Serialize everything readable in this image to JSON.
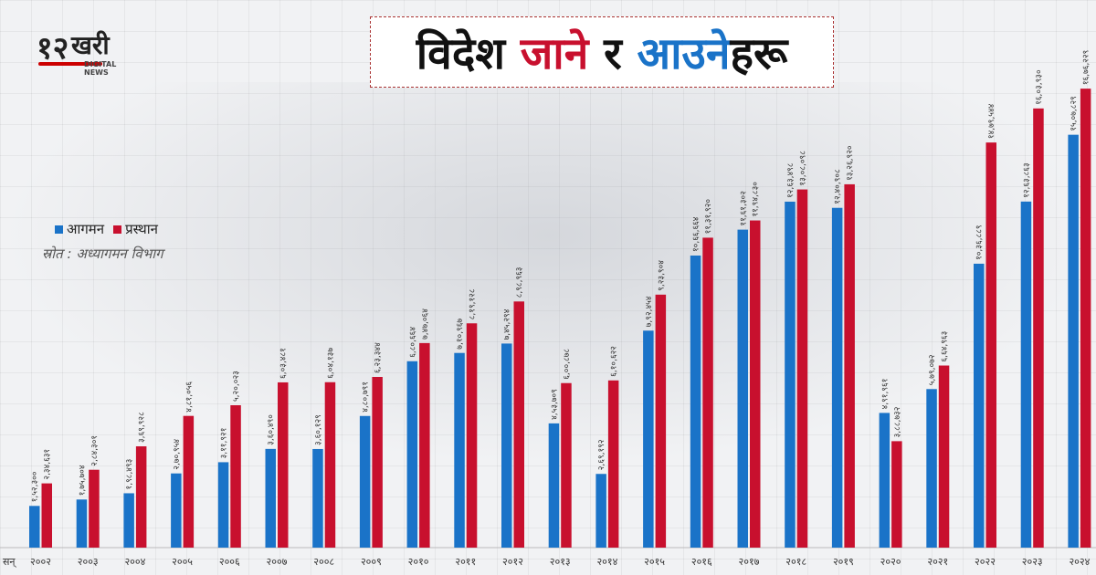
{
  "logo": {
    "number": "१२",
    "word": "खरी",
    "subtitle": "DIGITAL NEWS"
  },
  "title": {
    "part1": "विदेश",
    "part2": "जाने",
    "part3": "र",
    "part4": "आउने",
    "part5": "हरू"
  },
  "colors": {
    "arrival": "#1a73c8",
    "departure": "#c8102e"
  },
  "legend": {
    "arrival": "आगमन",
    "departure": "प्रस्थान"
  },
  "source": "स्रोत : अध्यागमन विभाग",
  "chart_data": {
    "type": "bar",
    "x_prefix": "सन्",
    "categories": [
      "२००२",
      "२००३",
      "२००४",
      "२००५",
      "२००६",
      "२००७",
      "२००८",
      "२००९",
      "२०१०",
      "२०११",
      "२०१२",
      "२०१३",
      "२०१४",
      "२०१५",
      "२०१६",
      "२०१७",
      "२०१८",
      "२०१९",
      "२०२०",
      "२०२१",
      "२०२२",
      "२०२३",
      "२०२४"
    ],
    "series": [
      {
        "name": "आगमन",
        "values": [
          152300,
          175704,
          198493,
          270954,
          311921,
          360490,
          360129,
          480791,
          680664,
          710967,
          745294,
          453709,
          269192,
          792454,
          1066664,
          1161302,
          1263498,
          1240908,
          491961,
          579072,
          1036889,
          1263863,
          1507829
        ],
        "labels": [
          "१,५२,३००",
          "१,७५,७०४",
          "१,९८,४९३",
          "२,७०,९५४",
          "३,११,९२१",
          "३,६०,४९०",
          "३,६०,१२९",
          "४,८०,७९१",
          "६,८०,६६४",
          "७,१०,९६७",
          "७,४५,२९४",
          "४,५३,७०९",
          "२,६९,१९२",
          "७,९२,४५४",
          "१०,६६,६६४",
          "११,६१,३०२",
          "१२,६३,४९८",
          "१२,४०,९०८",
          "४,९१,९६१",
          "५,७९,०७२",
          "१०,३६,८८९",
          "१२,६३,८६३",
          "१५,०७,८२९"
        ]
      },
      {
        "name": "प्रस्थान",
        "values": [
          234631,
          284301,
          369928,
          481056,
          520023,
          603481,
          604137,
          623344,
          747064,
          819128,
          898963,
          600878,
          610622,
          923904,
          1131920,
          1194830,
          1308098,
          1326920,
          388732,
          664963,
          1479544,
          1603930,
          1676229
        ],
        "labels": [
          "२,३४,६३१",
          "२,८४,३०१",
          "३,६९,९२८",
          "४,८१,०५६",
          "५,२०,०२३",
          "६,०३,४८१",
          "६,०४,१३७",
          "६,२३,३४४",
          "७,४७,०६४",
          "८,१९,१२८",
          "८,९८,९६३",
          "६,००,८७८",
          "६,१०,६२२",
          "९,२३,९०४",
          "११,३१,९२०",
          "११,९४,८३०",
          "१३,०८,०९८",
          "१३,२६,९२०",
          "३,८८,७३२",
          "६,६४,९६३",
          "१४,७९,५४४",
          "१६,०३,९३०",
          "१६,७६,२२९"
        ]
      }
    ],
    "ylim": [
      0,
      1800000
    ]
  }
}
